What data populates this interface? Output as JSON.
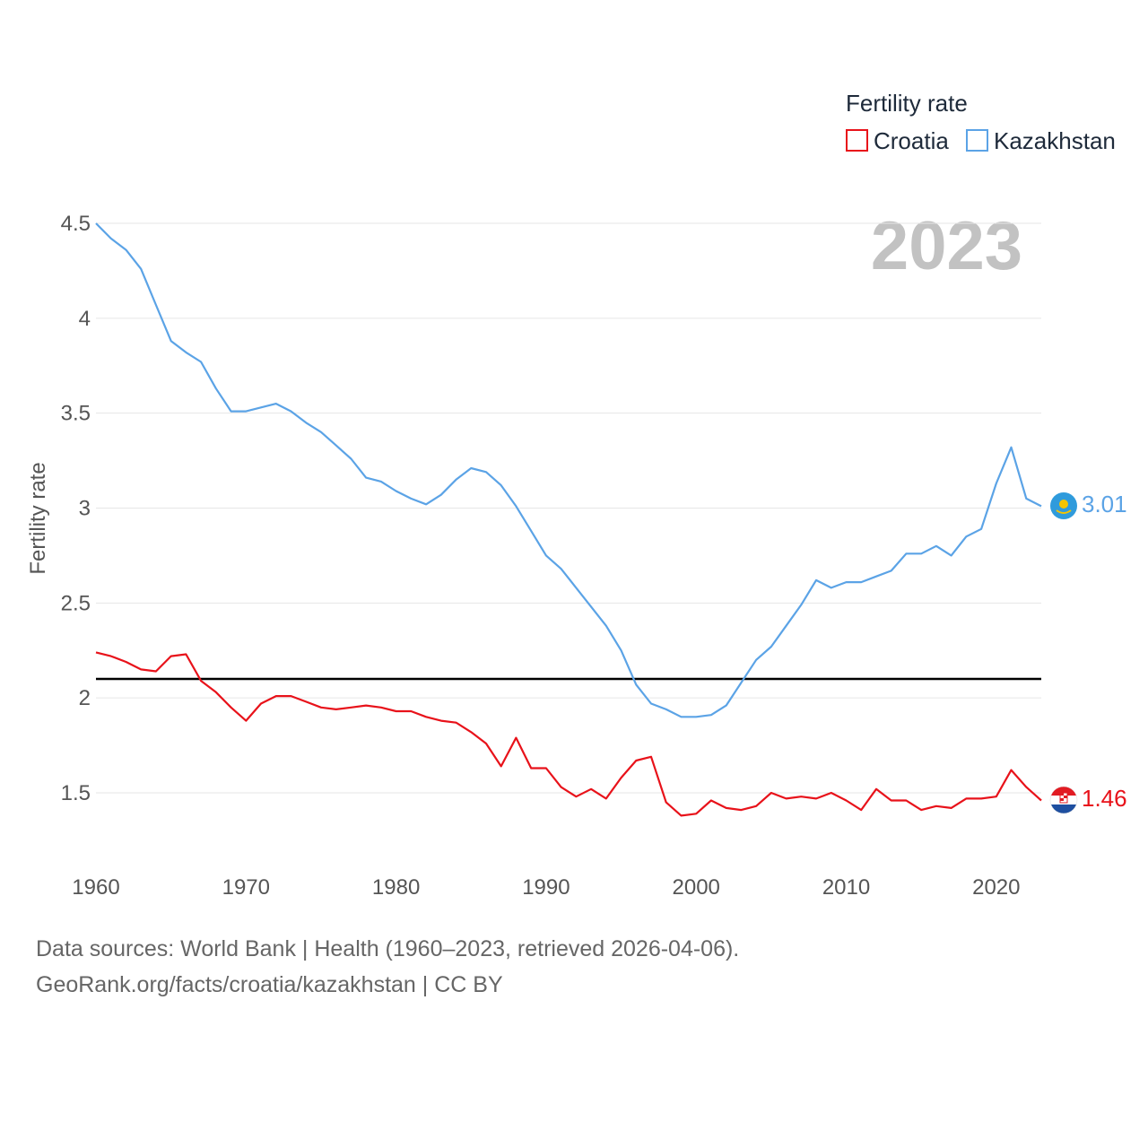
{
  "chart_data": {
    "type": "line",
    "legend_title": "Fertility rate",
    "ylabel": "Fertility rate",
    "year_label": "2023",
    "ylim": [
      1.2,
      4.6
    ],
    "xlim": [
      1960,
      2023
    ],
    "yticks": [
      1.5,
      2,
      2.5,
      3,
      3.5,
      4,
      4.5
    ],
    "ytick_labels": [
      "1.5",
      "2",
      "2.5",
      "3",
      "3.5",
      "4",
      "4.5"
    ],
    "xticks": [
      1960,
      1970,
      1980,
      1990,
      2000,
      2010,
      2020
    ],
    "xtick_labels": [
      "1960",
      "1970",
      "1980",
      "1990",
      "2000",
      "2010",
      "2020"
    ],
    "reference_line": 2.1,
    "x_start": 1960,
    "series": [
      {
        "name": "Croatia",
        "color": "#e8121a",
        "end_label": "1.46",
        "values": [
          2.24,
          2.22,
          2.19,
          2.15,
          2.14,
          2.22,
          2.23,
          2.09,
          2.03,
          1.95,
          1.88,
          1.97,
          2.01,
          2.01,
          1.98,
          1.95,
          1.94,
          1.95,
          1.96,
          1.95,
          1.93,
          1.93,
          1.9,
          1.88,
          1.87,
          1.82,
          1.76,
          1.64,
          1.79,
          1.63,
          1.63,
          1.53,
          1.48,
          1.52,
          1.47,
          1.58,
          1.67,
          1.69,
          1.45,
          1.38,
          1.39,
          1.46,
          1.42,
          1.41,
          1.43,
          1.5,
          1.47,
          1.48,
          1.47,
          1.5,
          1.46,
          1.41,
          1.52,
          1.46,
          1.46,
          1.41,
          1.43,
          1.42,
          1.47,
          1.47,
          1.48,
          1.62,
          1.53,
          1.46
        ]
      },
      {
        "name": "Kazakhstan",
        "color": "#5ba3e6",
        "end_label": "3.01",
        "values": [
          4.5,
          4.42,
          4.36,
          4.26,
          4.07,
          3.88,
          3.82,
          3.77,
          3.63,
          3.51,
          3.51,
          3.53,
          3.55,
          3.51,
          3.45,
          3.4,
          3.33,
          3.26,
          3.16,
          3.14,
          3.09,
          3.05,
          3.02,
          3.07,
          3.15,
          3.21,
          3.19,
          3.12,
          3.01,
          2.88,
          2.75,
          2.68,
          2.58,
          2.48,
          2.38,
          2.25,
          2.07,
          1.97,
          1.94,
          1.9,
          1.9,
          1.91,
          1.96,
          2.08,
          2.2,
          2.27,
          2.38,
          2.49,
          2.62,
          2.58,
          2.61,
          2.61,
          2.64,
          2.67,
          2.76,
          2.76,
          2.8,
          2.75,
          2.85,
          2.89,
          3.13,
          3.32,
          3.05,
          3.01
        ]
      }
    ]
  },
  "footer": {
    "source_line": "Data sources: World Bank | Health (1960–2023, retrieved 2026-04-06).",
    "url_line": "GeoRank.org/facts/croatia/kazakhstan | CC BY"
  }
}
